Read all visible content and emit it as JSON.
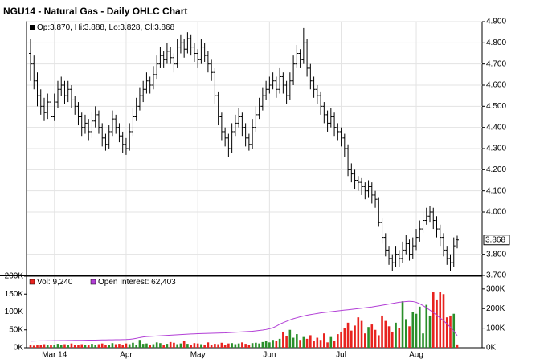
{
  "chart_data": [
    {
      "type": "ohlc",
      "title": "NGU14 - Natural Gas - Daily OHLC Chart",
      "legend_text": "Op:3.870, Hi:3.888, Lo:3.828, Cl:3.868",
      "last_label": "3.868",
      "color": "#000000",
      "grid": true,
      "categories": [
        null,
        null,
        null,
        null,
        null,
        null,
        null,
        "Mar 14",
        null,
        null,
        null,
        null,
        null,
        null,
        null,
        null,
        null,
        null,
        null,
        null,
        null,
        null,
        null,
        null,
        null,
        null,
        null,
        null,
        "Apr",
        null,
        null,
        null,
        null,
        null,
        null,
        null,
        null,
        null,
        null,
        null,
        null,
        null,
        null,
        null,
        null,
        null,
        null,
        null,
        null,
        "May",
        null,
        null,
        null,
        null,
        null,
        null,
        null,
        null,
        null,
        null,
        null,
        null,
        null,
        null,
        null,
        null,
        null,
        null,
        null,
        null,
        "Jun",
        null,
        null,
        null,
        null,
        null,
        null,
        null,
        null,
        null,
        null,
        null,
        null,
        null,
        null,
        null,
        null,
        null,
        null,
        null,
        null,
        "Jul",
        null,
        null,
        null,
        null,
        null,
        null,
        null,
        null,
        null,
        null,
        null,
        null,
        null,
        null,
        null,
        null,
        null,
        null,
        null,
        null,
        null,
        "Aug",
        null,
        null,
        null,
        null,
        null,
        null,
        null,
        null,
        null,
        null,
        null,
        null
      ],
      "ohlc": [
        [
          4.75,
          4.82,
          4.62,
          4.7
        ],
        [
          4.7,
          4.74,
          4.58,
          4.62
        ],
        [
          4.62,
          4.66,
          4.5,
          4.55
        ],
        [
          4.55,
          4.58,
          4.46,
          4.5
        ],
        [
          4.5,
          4.54,
          4.43,
          4.47
        ],
        [
          4.47,
          4.56,
          4.44,
          4.52
        ],
        [
          4.52,
          4.55,
          4.42,
          4.45
        ],
        [
          4.45,
          4.56,
          4.43,
          4.52
        ],
        [
          4.52,
          4.62,
          4.49,
          4.58
        ],
        [
          4.58,
          4.64,
          4.55,
          4.6
        ],
        [
          4.6,
          4.62,
          4.51,
          4.55
        ],
        [
          4.55,
          4.62,
          4.52,
          4.58
        ],
        [
          4.58,
          4.6,
          4.49,
          4.53
        ],
        [
          4.53,
          4.55,
          4.46,
          4.5
        ],
        [
          4.5,
          4.52,
          4.41,
          4.45
        ],
        [
          4.45,
          4.47,
          4.36,
          4.4
        ],
        [
          4.4,
          4.46,
          4.37,
          4.42
        ],
        [
          4.42,
          4.44,
          4.34,
          4.38
        ],
        [
          4.38,
          4.47,
          4.35,
          4.43
        ],
        [
          4.43,
          4.5,
          4.4,
          4.46
        ],
        [
          4.46,
          4.48,
          4.37,
          4.4
        ],
        [
          4.4,
          4.42,
          4.31,
          4.35
        ],
        [
          4.35,
          4.37,
          4.29,
          4.32
        ],
        [
          4.32,
          4.41,
          4.3,
          4.38
        ],
        [
          4.38,
          4.48,
          4.36,
          4.44
        ],
        [
          4.44,
          4.46,
          4.37,
          4.4
        ],
        [
          4.4,
          4.42,
          4.33,
          4.36
        ],
        [
          4.36,
          4.38,
          4.28,
          4.32
        ],
        [
          4.32,
          4.35,
          4.27,
          4.3
        ],
        [
          4.3,
          4.42,
          4.29,
          4.38
        ],
        [
          4.38,
          4.49,
          4.36,
          4.45
        ],
        [
          4.45,
          4.54,
          4.43,
          4.5
        ],
        [
          4.5,
          4.59,
          4.48,
          4.55
        ],
        [
          4.55,
          4.62,
          4.52,
          4.58
        ],
        [
          4.58,
          4.66,
          4.56,
          4.62
        ],
        [
          4.62,
          4.64,
          4.56,
          4.6
        ],
        [
          4.6,
          4.69,
          4.58,
          4.65
        ],
        [
          4.65,
          4.74,
          4.63,
          4.7
        ],
        [
          4.7,
          4.78,
          4.68,
          4.74
        ],
        [
          4.74,
          4.76,
          4.68,
          4.72
        ],
        [
          4.72,
          4.8,
          4.7,
          4.76
        ],
        [
          4.76,
          4.78,
          4.7,
          4.73
        ],
        [
          4.73,
          4.75,
          4.66,
          4.7
        ],
        [
          4.7,
          4.82,
          4.68,
          4.78
        ],
        [
          4.78,
          4.84,
          4.75,
          4.8
        ],
        [
          4.8,
          4.82,
          4.73,
          4.77
        ],
        [
          4.77,
          4.85,
          4.75,
          4.82
        ],
        [
          4.82,
          4.84,
          4.74,
          4.78
        ],
        [
          4.78,
          4.8,
          4.71,
          4.75
        ],
        [
          4.75,
          4.77,
          4.68,
          4.72
        ],
        [
          4.72,
          4.82,
          4.7,
          4.78
        ],
        [
          4.78,
          4.8,
          4.71,
          4.74
        ],
        [
          4.74,
          4.76,
          4.66,
          4.7
        ],
        [
          4.7,
          4.72,
          4.62,
          4.66
        ],
        [
          4.66,
          4.68,
          4.51,
          4.55
        ],
        [
          4.55,
          4.57,
          4.41,
          4.45
        ],
        [
          4.45,
          4.47,
          4.34,
          4.38
        ],
        [
          4.38,
          4.4,
          4.31,
          4.35
        ],
        [
          4.35,
          4.37,
          4.26,
          4.3
        ],
        [
          4.3,
          4.42,
          4.28,
          4.38
        ],
        [
          4.38,
          4.46,
          4.36,
          4.42
        ],
        [
          4.42,
          4.49,
          4.4,
          4.45
        ],
        [
          4.45,
          4.47,
          4.36,
          4.4
        ],
        [
          4.4,
          4.42,
          4.31,
          4.35
        ],
        [
          4.35,
          4.37,
          4.29,
          4.32
        ],
        [
          4.32,
          4.44,
          4.3,
          4.4
        ],
        [
          4.4,
          4.5,
          4.38,
          4.46
        ],
        [
          4.46,
          4.54,
          4.44,
          4.5
        ],
        [
          4.5,
          4.59,
          4.48,
          4.55
        ],
        [
          4.55,
          4.62,
          4.53,
          4.58
        ],
        [
          4.58,
          4.64,
          4.56,
          4.6
        ],
        [
          4.6,
          4.66,
          4.58,
          4.62
        ],
        [
          4.62,
          4.64,
          4.54,
          4.58
        ],
        [
          4.58,
          4.68,
          4.56,
          4.64
        ],
        [
          4.64,
          4.66,
          4.56,
          4.6
        ],
        [
          4.6,
          4.62,
          4.51,
          4.55
        ],
        [
          4.55,
          4.66,
          4.53,
          4.62
        ],
        [
          4.62,
          4.74,
          4.6,
          4.7
        ],
        [
          4.7,
          4.79,
          4.68,
          4.75
        ],
        [
          4.75,
          4.77,
          4.68,
          4.72
        ],
        [
          4.72,
          4.87,
          4.7,
          4.8
        ],
        [
          4.8,
          4.82,
          4.64,
          4.68
        ],
        [
          4.68,
          4.7,
          4.58,
          4.62
        ],
        [
          4.62,
          4.64,
          4.54,
          4.58
        ],
        [
          4.58,
          4.6,
          4.51,
          4.55
        ],
        [
          4.55,
          4.57,
          4.46,
          4.5
        ],
        [
          4.5,
          4.52,
          4.42,
          4.46
        ],
        [
          4.46,
          4.48,
          4.38,
          4.42
        ],
        [
          4.42,
          4.49,
          4.4,
          4.45
        ],
        [
          4.45,
          4.47,
          4.36,
          4.4
        ],
        [
          4.4,
          4.42,
          4.34,
          4.38
        ],
        [
          4.38,
          4.4,
          4.31,
          4.35
        ],
        [
          4.35,
          4.37,
          4.26,
          4.3
        ],
        [
          4.3,
          4.32,
          4.17,
          4.2
        ],
        [
          4.2,
          4.23,
          4.14,
          4.18
        ],
        [
          4.18,
          4.2,
          4.11,
          4.15
        ],
        [
          4.15,
          4.17,
          4.1,
          4.14
        ],
        [
          4.14,
          4.16,
          4.08,
          4.12
        ],
        [
          4.12,
          4.14,
          4.06,
          4.1
        ],
        [
          4.1,
          4.15,
          4.07,
          4.12
        ],
        [
          4.12,
          4.14,
          4.04,
          4.08
        ],
        [
          4.08,
          4.1,
          4.02,
          4.06
        ],
        [
          4.06,
          4.07,
          3.93,
          3.95
        ],
        [
          3.95,
          3.97,
          3.85,
          3.88
        ],
        [
          3.88,
          3.9,
          3.79,
          3.82
        ],
        [
          3.82,
          3.84,
          3.75,
          3.78
        ],
        [
          3.78,
          3.8,
          3.72,
          3.76
        ],
        [
          3.76,
          3.84,
          3.74,
          3.8
        ],
        [
          3.8,
          3.82,
          3.74,
          3.78
        ],
        [
          3.78,
          3.86,
          3.76,
          3.82
        ],
        [
          3.82,
          3.89,
          3.8,
          3.85
        ],
        [
          3.85,
          3.87,
          3.77,
          3.8
        ],
        [
          3.8,
          3.88,
          3.78,
          3.84
        ],
        [
          3.84,
          3.92,
          3.82,
          3.88
        ],
        [
          3.88,
          3.96,
          3.86,
          3.92
        ],
        [
          3.92,
          4.0,
          3.9,
          3.96
        ],
        [
          3.96,
          4.02,
          3.94,
          3.98
        ],
        [
          3.98,
          4.03,
          3.95,
          4.0
        ],
        [
          4.0,
          4.02,
          3.92,
          3.96
        ],
        [
          3.96,
          3.98,
          3.88,
          3.92
        ],
        [
          3.92,
          3.94,
          3.84,
          3.88
        ],
        [
          3.88,
          3.9,
          3.79,
          3.82
        ],
        [
          3.82,
          3.84,
          3.75,
          3.78
        ],
        [
          3.78,
          3.8,
          3.72,
          3.76
        ],
        [
          3.76,
          3.88,
          3.74,
          3.84
        ],
        [
          3.87,
          3.888,
          3.828,
          3.868
        ]
      ],
      "ylim": [
        3.7,
        4.9
      ],
      "yticks": [
        {
          "value": 4.9,
          "label": "4.900"
        },
        {
          "value": 4.8,
          "label": "4.800"
        },
        {
          "value": 4.7,
          "label": "4.700"
        },
        {
          "value": 4.6,
          "label": "4.600"
        },
        {
          "value": 4.5,
          "label": "4.500"
        },
        {
          "value": 4.4,
          "label": "4.400"
        },
        {
          "value": 4.3,
          "label": "4.300"
        },
        {
          "value": 4.2,
          "label": "4.200"
        },
        {
          "value": 4.1,
          "label": "4.100"
        },
        {
          "value": 4.0,
          "label": "4.000"
        },
        {
          "value": 3.8,
          "label": "3.800"
        },
        {
          "value": 3.7,
          "label": "3.700"
        }
      ]
    },
    {
      "type": "volume",
      "grid": true,
      "series": [
        {
          "name": "Vol: 9,240",
          "color": "#e8231f",
          "up_color": "#2a8f2a",
          "values": [
            8000,
            6000,
            9000,
            7000,
            10000,
            8000,
            7000,
            9000,
            11000,
            8000,
            10000,
            9000,
            12000,
            8000,
            7000,
            10000,
            9000,
            8000,
            11000,
            9000,
            10000,
            12000,
            9000,
            8000,
            13000,
            10000,
            11000,
            9000,
            12000,
            10000,
            14000,
            9000,
            22000,
            11000,
            12000,
            8000,
            10000,
            15000,
            13000,
            9000,
            11000,
            16000,
            14000,
            10000,
            12000,
            18000,
            11000,
            9000,
            13000,
            12000,
            10000,
            9000,
            15000,
            8000,
            11000,
            10000,
            14000,
            9000,
            12000,
            13000,
            10000,
            12000,
            15000,
            11000,
            9000,
            13000,
            14000,
            12000,
            16000,
            18000,
            15000,
            22000,
            20000,
            25000,
            45000,
            32000,
            50000,
            28000,
            38000,
            22000,
            30000,
            25000,
            35000,
            18000,
            28000,
            22000,
            40000,
            15000,
            30000,
            20000,
            38000,
            45000,
            55000,
            70000,
            48000,
            62000,
            85000,
            75000,
            40000,
            58000,
            65000,
            50000,
            35000,
            90000,
            75000,
            60000,
            45000,
            70000,
            55000,
            130000,
            80000,
            60000,
            100000,
            95000,
            115000,
            40000,
            120000,
            90000,
            155000,
            135000,
            155000,
            150000,
            85000,
            90000,
            95000,
            9240
          ]
        },
        {
          "name": "Open Interest: 62,403",
          "color": "#b23fd6",
          "axis": "y2",
          "values": [
            34000,
            34500,
            35000,
            35200,
            35500,
            35800,
            36000,
            36300,
            36500,
            36800,
            37000,
            37200,
            37500,
            37800,
            38000,
            38200,
            38500,
            38700,
            39000,
            39200,
            39500,
            39800,
            40000,
            40300,
            40500,
            40800,
            41000,
            41500,
            42000,
            43000,
            45000,
            48000,
            52000,
            55000,
            57000,
            58000,
            59000,
            60000,
            61000,
            62000,
            63000,
            64000,
            65000,
            66000,
            67000,
            68000,
            69000,
            70000,
            71000,
            72000,
            72500,
            73000,
            73500,
            74000,
            74500,
            75000,
            75500,
            76000,
            77000,
            78000,
            79000,
            80000,
            81000,
            82000,
            83000,
            84000,
            86000,
            88000,
            90000,
            93000,
            97000,
            102000,
            110000,
            120000,
            128000,
            135000,
            142000,
            148000,
            153000,
            158000,
            162000,
            166000,
            169000,
            172000,
            175000,
            178000,
            180000,
            182000,
            184000,
            186000,
            188000,
            190000,
            192000,
            194000,
            196000,
            198000,
            200000,
            202000,
            204000,
            206000,
            208000,
            211000,
            214000,
            217000,
            220000,
            223000,
            226000,
            229000,
            232000,
            234000,
            236000,
            237000,
            236000,
            232000,
            225000,
            215000,
            204000,
            192000,
            180000,
            166000,
            152000,
            138000,
            122000,
            105000,
            85000,
            62403
          ]
        }
      ],
      "ylim": [
        0,
        200000
      ],
      "yticks": [
        {
          "value": 0,
          "label": "0K"
        },
        {
          "value": 50000,
          "label": "50K"
        },
        {
          "value": 100000,
          "label": "100K"
        },
        {
          "value": 150000,
          "label": "150K"
        },
        {
          "value": 200000,
          "label": "200K"
        }
      ],
      "y2lim": [
        0,
        365000
      ],
      "y2ticks": [
        {
          "value": 0,
          "label": "0K"
        },
        {
          "value": 100000,
          "label": "100K"
        },
        {
          "value": 200000,
          "label": "200K"
        },
        {
          "value": 300000,
          "label": "300K"
        }
      ]
    }
  ]
}
